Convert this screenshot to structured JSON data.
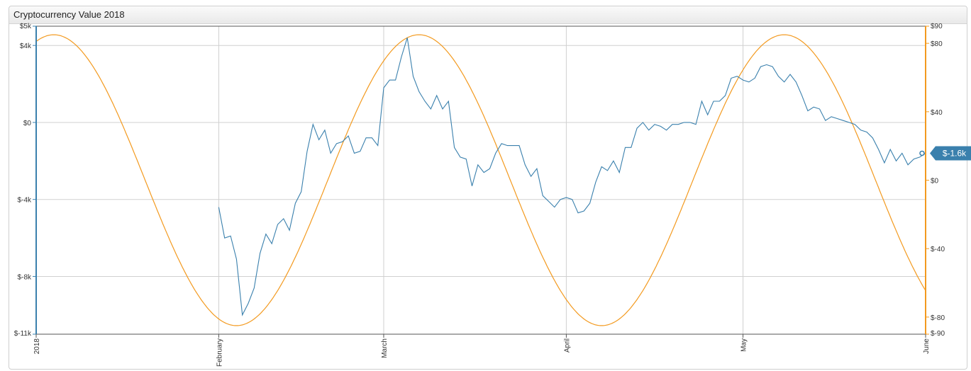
{
  "widget": {
    "title": "Cryptocurrency Value 2018"
  },
  "colors": {
    "left_series": "#3a80ad",
    "right_series": "#f39a1f",
    "grid": "#d0d0d0",
    "badge": "#3a80ad"
  },
  "chart_data": {
    "type": "line",
    "title": "Cryptocurrency Value 2018",
    "x_range": [
      "2018-01-01",
      "2018-06-01"
    ],
    "x_ticks": [
      {
        "date": "2018-01-01",
        "label": "2018"
      },
      {
        "date": "2018-02-01",
        "label": "February"
      },
      {
        "date": "2018-03-01",
        "label": "March"
      },
      {
        "date": "2018-04-01",
        "label": "April"
      },
      {
        "date": "2018-05-01",
        "label": "May"
      },
      {
        "date": "2018-06-01",
        "label": "June"
      }
    ],
    "y_left": {
      "range": [
        -11000,
        5000
      ],
      "ticks": [
        {
          "value": 5000,
          "label": "$5k"
        },
        {
          "value": 4000,
          "label": "$4k"
        },
        {
          "value": 0,
          "label": "$0"
        },
        {
          "value": -4000,
          "label": "$-4k"
        },
        {
          "value": -8000,
          "label": "$-8k"
        },
        {
          "value": -11000,
          "label": "$-11k"
        }
      ]
    },
    "y_right": {
      "range": [
        -90,
        90
      ],
      "ticks": [
        {
          "value": 90,
          "label": "$90"
        },
        {
          "value": 80,
          "label": "$80"
        },
        {
          "value": 40,
          "label": "$40"
        },
        {
          "value": 0,
          "label": "$0"
        },
        {
          "value": -40,
          "label": "$-40"
        },
        {
          "value": -80,
          "label": "$-80"
        },
        {
          "value": -90,
          "label": "$-90"
        }
      ]
    },
    "grid": true,
    "last_value_badge": "$-1.6k",
    "series": [
      {
        "axis": "left",
        "x": [
          "2018-02-01",
          "2018-02-02",
          "2018-02-03",
          "2018-02-04",
          "2018-02-05",
          "2018-02-06",
          "2018-02-07",
          "2018-02-08",
          "2018-02-09",
          "2018-02-10",
          "2018-02-11",
          "2018-02-12",
          "2018-02-13",
          "2018-02-14",
          "2018-02-15",
          "2018-02-16",
          "2018-02-17",
          "2018-02-18",
          "2018-02-19",
          "2018-02-20",
          "2018-02-21",
          "2018-02-22",
          "2018-02-23",
          "2018-02-24",
          "2018-02-25",
          "2018-02-26",
          "2018-02-27",
          "2018-02-28",
          "2018-03-01",
          "2018-03-02",
          "2018-03-03",
          "2018-03-04",
          "2018-03-05",
          "2018-03-06",
          "2018-03-07",
          "2018-03-08",
          "2018-03-09",
          "2018-03-10",
          "2018-03-11",
          "2018-03-12",
          "2018-03-13",
          "2018-03-14",
          "2018-03-15",
          "2018-03-16",
          "2018-03-17",
          "2018-03-18",
          "2018-03-19",
          "2018-03-20",
          "2018-03-21",
          "2018-03-22",
          "2018-03-23",
          "2018-03-24",
          "2018-03-25",
          "2018-03-26",
          "2018-03-27",
          "2018-03-28",
          "2018-03-29",
          "2018-03-30",
          "2018-03-31",
          "2018-04-01",
          "2018-04-02",
          "2018-04-03",
          "2018-04-04",
          "2018-04-05",
          "2018-04-06",
          "2018-04-07",
          "2018-04-08",
          "2018-04-09",
          "2018-04-10",
          "2018-04-11",
          "2018-04-12",
          "2018-04-13",
          "2018-04-14",
          "2018-04-15",
          "2018-04-16",
          "2018-04-17",
          "2018-04-18",
          "2018-04-19",
          "2018-04-20",
          "2018-04-21",
          "2018-04-22",
          "2018-04-23",
          "2018-04-24",
          "2018-04-25",
          "2018-04-26",
          "2018-04-27",
          "2018-04-28",
          "2018-04-29",
          "2018-04-30",
          "2018-05-01",
          "2018-05-02",
          "2018-05-03",
          "2018-05-04",
          "2018-05-05",
          "2018-05-06",
          "2018-05-07",
          "2018-05-08",
          "2018-05-09",
          "2018-05-10",
          "2018-05-11",
          "2018-05-12",
          "2018-05-13",
          "2018-05-14",
          "2018-05-15",
          "2018-05-16",
          "2018-05-17",
          "2018-05-18",
          "2018-05-19",
          "2018-05-20",
          "2018-05-21",
          "2018-05-22",
          "2018-05-23",
          "2018-05-24",
          "2018-05-25",
          "2018-05-26",
          "2018-05-27",
          "2018-05-28",
          "2018-05-29",
          "2018-05-30",
          "2018-05-31",
          "2018-06-01"
        ],
        "values": [
          -4400,
          -6000,
          -5900,
          -7100,
          -10000,
          -9400,
          -8600,
          -6800,
          -5800,
          -6300,
          -5300,
          -5000,
          -5600,
          -4200,
          -3600,
          -1500,
          -100,
          -900,
          -400,
          -1600,
          -1100,
          -1000,
          -700,
          -1600,
          -1500,
          -800,
          -800,
          -1200,
          1800,
          2200,
          2200,
          3400,
          4400,
          2400,
          1600,
          1100,
          700,
          1400,
          700,
          1100,
          -1300,
          -1800,
          -1900,
          -3300,
          -2200,
          -2600,
          -2400,
          -1600,
          -1100,
          -1200,
          -1200,
          -1200,
          -2200,
          -2800,
          -2400,
          -3800,
          -4100,
          -4400,
          -4000,
          -3900,
          -4000,
          -4700,
          -4600,
          -4200,
          -3100,
          -2300,
          -2500,
          -2000,
          -2600,
          -1300,
          -1300,
          -300,
          0,
          -400,
          -100,
          -200,
          -400,
          -100,
          -100,
          0,
          0,
          -100,
          1100,
          400,
          1100,
          1100,
          1400,
          2300,
          2400,
          2200,
          2100,
          2300,
          2900,
          3000,
          2900,
          2400,
          2100,
          2500,
          2100,
          1400,
          600,
          800,
          700,
          100,
          300,
          200,
          100,
          0,
          -100,
          -400,
          -500,
          -800,
          -1400,
          -2100,
          -1400,
          -2000,
          -1600,
          -2200,
          -1900,
          -1800,
          -1600
        ]
      },
      {
        "axis": "right",
        "x_range": [
          "2018-01-01",
          "2018-06-01"
        ],
        "amplitude": 85,
        "period_days": 62,
        "phase_peak_date": "2018-01-04"
      }
    ]
  }
}
